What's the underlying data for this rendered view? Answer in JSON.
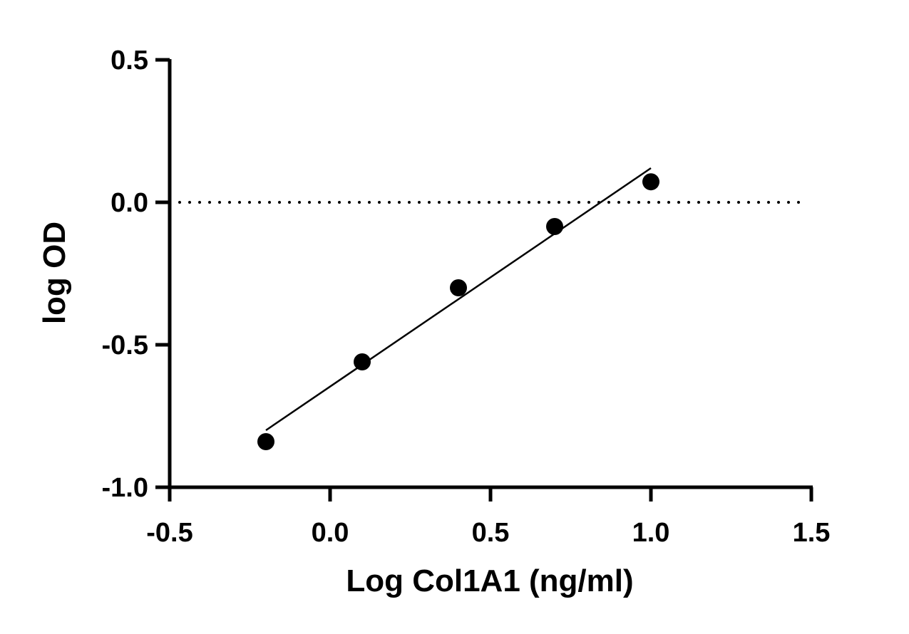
{
  "chart_data": {
    "type": "scatter",
    "title": "",
    "xlabel": "Log Col1A1 (ng/ml)",
    "ylabel": "log OD",
    "xlim": [
      -0.5,
      1.5
    ],
    "ylim": [
      -1.0,
      0.5
    ],
    "x_ticks": [
      "-0.5",
      "0.0",
      "0.5",
      "1.0",
      "1.5"
    ],
    "y_ticks": [
      "0.5",
      "0.0",
      "-0.5",
      "-1.0"
    ],
    "grid": false,
    "series": [
      {
        "marker": "filled-circle",
        "color": "#000000",
        "x": [
          -0.2,
          0.1,
          0.4,
          0.7,
          1.0
        ],
        "y": [
          -0.84,
          -0.56,
          -0.3,
          -0.085,
          0.072
        ]
      }
    ],
    "fit_line": {
      "type": "linear",
      "x_start": -0.2,
      "y_start": -0.8,
      "x_end": 1.0,
      "y_end": 0.12
    },
    "reference_line": {
      "y": 0.0,
      "style": "dotted",
      "x_start": -0.5,
      "x_end": 1.47
    }
  }
}
